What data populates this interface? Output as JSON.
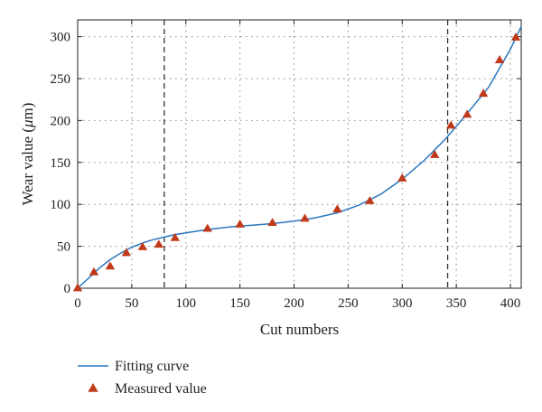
{
  "chart_data": {
    "type": "line",
    "title": "",
    "xlabel": "Cut numbers",
    "ylabel_prefix": "Wear value (",
    "ylabel_mu": "μ",
    "ylabel_suffix": "m)",
    "xlim": [
      0,
      410
    ],
    "ylim": [
      0,
      320
    ],
    "xticks": [
      0,
      50,
      100,
      150,
      200,
      250,
      300,
      350,
      400
    ],
    "yticks": [
      0,
      50,
      100,
      150,
      200,
      250,
      300
    ],
    "grid": true,
    "vertical_reference_lines": [
      80,
      342
    ],
    "legend_position": "bottom-left (below plot)",
    "colors": {
      "fit": "#2a78c0",
      "measured": "#c0391b",
      "refline": "#333333",
      "grid": "#888888"
    },
    "series": [
      {
        "name": "Fitting curve",
        "kind": "line",
        "x": [
          0,
          10,
          20,
          30,
          40,
          50,
          60,
          70,
          80,
          90,
          100,
          120,
          140,
          160,
          180,
          200,
          220,
          240,
          260,
          280,
          300,
          320,
          340,
          360,
          380,
          400,
          410
        ],
        "y": [
          0,
          12,
          24,
          34,
          42,
          49,
          54,
          58,
          61,
          64,
          66,
          70,
          73,
          75,
          77,
          80,
          84,
          90,
          99,
          112,
          130,
          152,
          178,
          208,
          240,
          285,
          312
        ]
      },
      {
        "name": "Measured value",
        "kind": "scatter",
        "marker": "triangle",
        "x": [
          0,
          15,
          30,
          45,
          60,
          75,
          90,
          120,
          150,
          180,
          210,
          240,
          270,
          300,
          330,
          345,
          360,
          375,
          390,
          405
        ],
        "y": [
          0,
          19,
          26,
          42,
          49,
          52,
          60,
          71,
          76,
          78,
          83,
          94,
          104,
          131,
          159,
          194,
          207,
          232,
          272,
          299
        ]
      }
    ]
  }
}
